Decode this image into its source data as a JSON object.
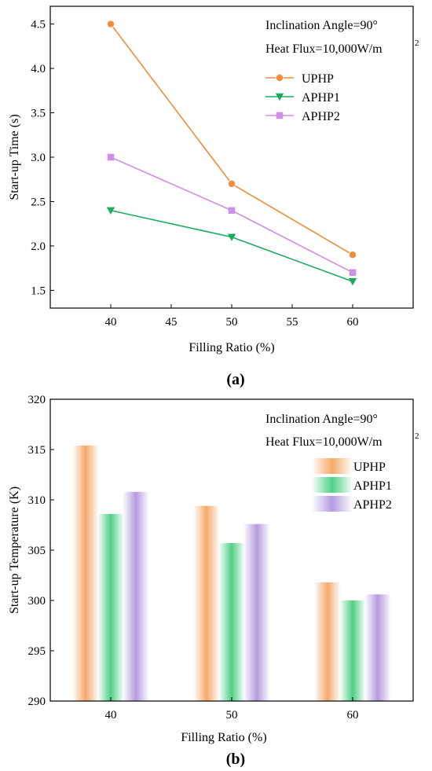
{
  "chart_data": [
    {
      "type": "line",
      "panel_label": "(a)",
      "xlabel": "Filling Ratio (%)",
      "ylabel": "Start-up Time (s)",
      "annotations": [
        "Inclination Angle=90°",
        "Heat Flux=10,000W/m",
        "2"
      ],
      "xlim": [
        35,
        65
      ],
      "ylim": [
        1.3,
        4.7
      ],
      "x_ticks": [
        "40",
        "45",
        "50",
        "55",
        "60"
      ],
      "y_ticks": [
        "1.5",
        "2.0",
        "2.5",
        "3.0",
        "3.5",
        "4.0",
        "4.5"
      ],
      "x": [
        40,
        50,
        60
      ],
      "legend_position": "top-right",
      "series": [
        {
          "name": "UPHP",
          "values": [
            4.5,
            2.7,
            1.9
          ],
          "color": "#f08c3c",
          "marker": "circle"
        },
        {
          "name": "APHP1",
          "values": [
            2.4,
            2.1,
            1.6
          ],
          "color": "#1aab5f",
          "marker": "triangle-down"
        },
        {
          "name": "APHP2",
          "values": [
            3.0,
            2.4,
            1.7
          ],
          "color": "#cf8fe6",
          "marker": "square"
        }
      ]
    },
    {
      "type": "bar",
      "panel_label": "(b)",
      "xlabel": "Filling Ratio (%)",
      "ylabel": "Start-up Temperature (K)",
      "annotations": [
        "Inclination Angle=90°",
        "Heat Flux=10,000W/m",
        "2"
      ],
      "ylim": [
        290,
        320
      ],
      "y_ticks": [
        "290",
        "295",
        "300",
        "305",
        "310",
        "315",
        "320"
      ],
      "categories": [
        "40",
        "50",
        "60"
      ],
      "legend_position": "top-right",
      "series": [
        {
          "name": "UPHP",
          "values": [
            315.4,
            309.4,
            301.8
          ],
          "color": "#f5a86b"
        },
        {
          "name": "APHP1",
          "values": [
            308.6,
            305.7,
            300.0
          ],
          "color": "#4fcf86"
        },
        {
          "name": "APHP2",
          "values": [
            310.8,
            307.6,
            300.6
          ],
          "color": "#b49be0"
        }
      ]
    }
  ]
}
